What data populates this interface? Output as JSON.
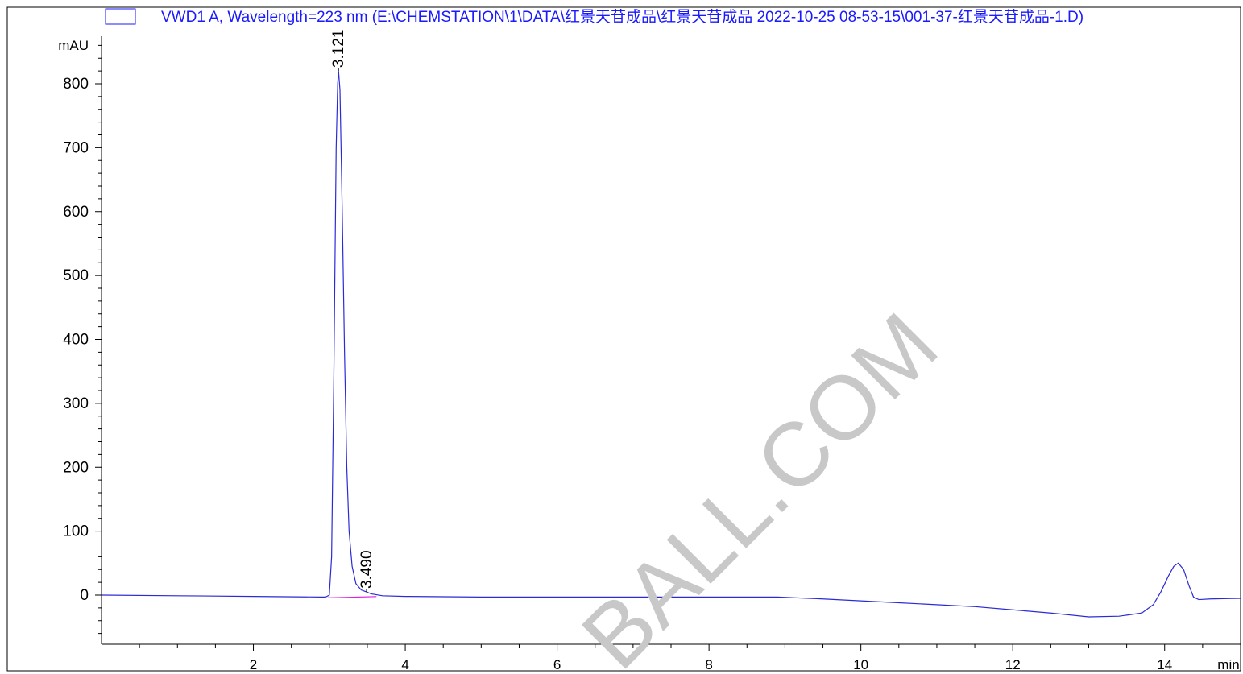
{
  "legend": {
    "swatch_color": "#1a1aff",
    "text": "VWD1 A, Wavelength=223 nm (E:\\CHEMSTATION\\1\\DATA\\红景天苷成品\\红景天苷成品 2022-10-25 08-53-15\\001-37-红景天苷成品-1.D)"
  },
  "watermark": "BALL.COM",
  "colors": {
    "trace": "#2b2bd6",
    "baseline": "#e020e0",
    "legend_text": "#1a1aff",
    "axis": "#000000",
    "watermark": "#c8c8c8"
  },
  "chart_data": {
    "type": "line",
    "xunit": "min",
    "yunit": "mAU",
    "xlim": [
      0,
      15
    ],
    "ylim": [
      -80,
      870
    ],
    "x_ticks": [
      2,
      4,
      6,
      8,
      10,
      12,
      14
    ],
    "x_tick_labels": [
      "2",
      "4",
      "6",
      "8",
      "10",
      "12",
      "14"
    ],
    "y_ticks": [
      0,
      100,
      200,
      300,
      400,
      500,
      600,
      700,
      800
    ],
    "y_tick_labels": [
      "0",
      "100",
      "200",
      "300",
      "400",
      "500",
      "600",
      "700",
      "800"
    ],
    "series": [
      {
        "points": [
          [
            0.0,
            0
          ],
          [
            1.0,
            -1
          ],
          [
            2.0,
            -2
          ],
          [
            2.9,
            -3
          ],
          [
            2.95,
            -3
          ],
          [
            3.0,
            0
          ],
          [
            3.03,
            60
          ],
          [
            3.06,
            350
          ],
          [
            3.09,
            700
          ],
          [
            3.11,
            800
          ],
          [
            3.121,
            820
          ],
          [
            3.14,
            790
          ],
          [
            3.17,
            600
          ],
          [
            3.2,
            380
          ],
          [
            3.23,
            200
          ],
          [
            3.26,
            100
          ],
          [
            3.3,
            45
          ],
          [
            3.35,
            18
          ],
          [
            3.42,
            8
          ],
          [
            3.49,
            5
          ],
          [
            3.55,
            2
          ],
          [
            3.7,
            -1
          ],
          [
            4.0,
            -2
          ],
          [
            5.0,
            -3
          ],
          [
            6.0,
            -3
          ],
          [
            7.0,
            -3
          ],
          [
            8.0,
            -3
          ],
          [
            8.9,
            -3
          ],
          [
            9.5,
            -6
          ],
          [
            10.0,
            -9
          ],
          [
            10.5,
            -12
          ],
          [
            11.0,
            -15
          ],
          [
            11.5,
            -18
          ],
          [
            12.0,
            -23
          ],
          [
            12.5,
            -28
          ],
          [
            13.0,
            -34
          ],
          [
            13.4,
            -33
          ],
          [
            13.7,
            -28
          ],
          [
            13.85,
            -15
          ],
          [
            13.95,
            5
          ],
          [
            14.05,
            30
          ],
          [
            14.12,
            45
          ],
          [
            14.18,
            50
          ],
          [
            14.25,
            40
          ],
          [
            14.32,
            15
          ],
          [
            14.38,
            -3
          ],
          [
            14.45,
            -7
          ],
          [
            14.6,
            -6
          ],
          [
            15.0,
            -5
          ]
        ]
      }
    ],
    "integration_baseline": [
      [
        2.98,
        -3
      ],
      [
        3.62,
        -1
      ]
    ],
    "peaks": [
      {
        "rt": 3.121,
        "label": "3.121",
        "height": 820
      },
      {
        "rt": 3.49,
        "label": "3.490",
        "height": 5
      }
    ]
  }
}
